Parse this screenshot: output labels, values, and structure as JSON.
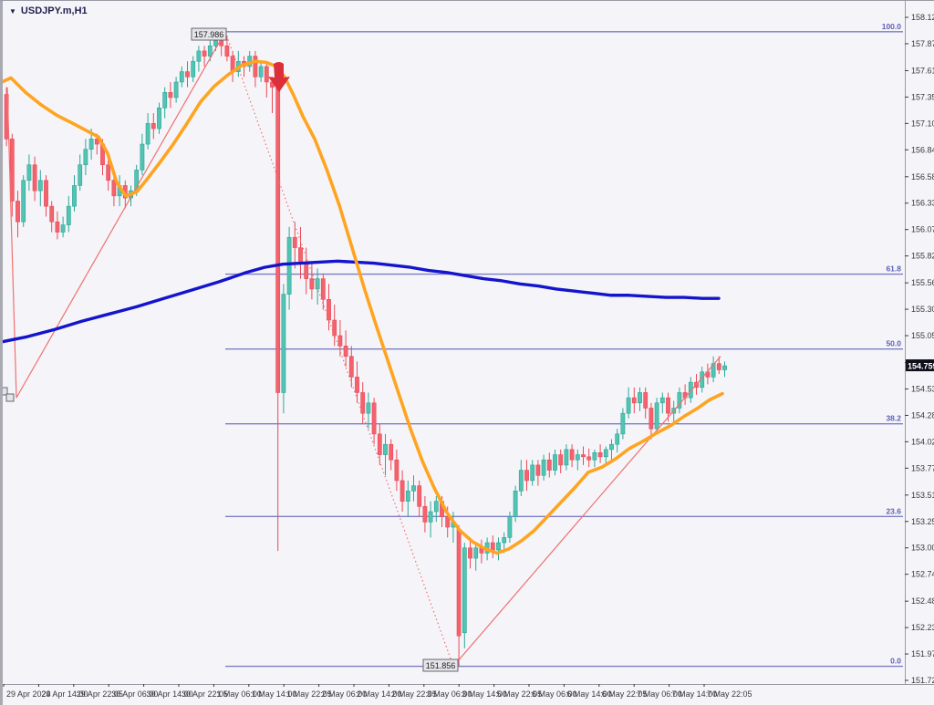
{
  "window": {
    "title": "USDJPY.m,H1"
  },
  "colors": {
    "bg": "#f5f5f9",
    "plot_bg": "#f5f5f9",
    "frame": "#9a9aa4",
    "left_strip": "#a9a9b1",
    "axis_text": "#3a3a3a",
    "fib_line": "#7d7dc4",
    "fib_text": "#5e5eb8",
    "bull_body": "#53c3b3",
    "bull_border": "#2aa795",
    "bear_body": "#f2636e",
    "bear_border": "#ea4956",
    "ma_fast": "#ffa420",
    "ma_slow": "#1414cd",
    "trend": "#f07070",
    "arrow": "#dc2f3a",
    "marker_bg": "#10101c",
    "marker_text": "#ffffff",
    "label_box_bg": "#e4e4ea",
    "label_box_border": "#666670",
    "label_box_text": "#222222"
  },
  "price_axis": {
    "ticks": [
      "158.125",
      "157.870",
      "157.610",
      "157.355",
      "157.100",
      "156.845",
      "156.585",
      "156.330",
      "156.075",
      "155.820",
      "155.560",
      "155.305",
      "155.050",
      "154.790",
      "154.535",
      "154.280",
      "154.025",
      "153.770",
      "153.510",
      "153.255",
      "153.000",
      "152.745",
      "152.485",
      "152.230",
      "151.975",
      "151.720"
    ]
  },
  "time_axis": {
    "labels": [
      "29 Apr 2024",
      "29 Apr 14:00",
      "29 Apr 22:05",
      "30 Apr 06:00",
      "30 Apr 14:00",
      "30 Apr 22:05",
      "1 May 06:00",
      "1 May 14:00",
      "1 May 22:05",
      "2 May 06:00",
      "2 May 14:00",
      "2 May 22:05",
      "3 May 06:00",
      "3 May 14:00",
      "5 May 22:05",
      "6 May 06:00",
      "6 May 14:00",
      "6 May 22:05",
      "7 May 06:00",
      "7 May 14:00",
      "7 May 22:05"
    ]
  },
  "price_marker": {
    "value": "154.759"
  },
  "annotations": {
    "high_label": "157.986",
    "low_label": "151.856"
  },
  "chart_data": {
    "type": "candlestick",
    "symbol": "USDJPY.m",
    "timeframe": "H1",
    "ylim": [
      151.72,
      158.125
    ],
    "legend_position": "none",
    "grid": false,
    "fib": {
      "high": 157.986,
      "low": 151.856,
      "levels": [
        {
          "label": "100.0",
          "price": 157.986
        },
        {
          "label": "61.8",
          "price": 155.644
        },
        {
          "label": "50.0",
          "price": 154.921
        },
        {
          "label": "38.2",
          "price": 154.198
        },
        {
          "label": "23.6",
          "price": 153.303
        },
        {
          "label": "0.0",
          "price": 151.856
        }
      ]
    },
    "candles": [
      [
        157.38,
        157.45,
        156.88,
        156.95
      ],
      [
        156.95,
        157.0,
        156.2,
        156.35
      ],
      [
        156.35,
        156.45,
        156.0,
        156.15
      ],
      [
        156.15,
        156.6,
        156.1,
        156.55
      ],
      [
        156.55,
        156.8,
        156.45,
        156.7
      ],
      [
        156.7,
        156.78,
        156.35,
        156.45
      ],
      [
        156.45,
        156.65,
        156.3,
        156.55
      ],
      [
        156.55,
        156.6,
        156.2,
        156.3
      ],
      [
        156.3,
        156.35,
        156.05,
        156.15
      ],
      [
        156.15,
        156.25,
        155.98,
        156.05
      ],
      [
        156.05,
        156.2,
        156.0,
        156.12
      ],
      [
        156.12,
        156.4,
        156.05,
        156.3
      ],
      [
        156.3,
        156.6,
        156.25,
        156.5
      ],
      [
        156.5,
        156.8,
        156.45,
        156.7
      ],
      [
        156.7,
        156.95,
        156.6,
        156.85
      ],
      [
        156.85,
        157.05,
        156.75,
        156.95
      ],
      [
        156.95,
        157.0,
        156.8,
        156.9
      ],
      [
        156.9,
        156.95,
        156.6,
        156.7
      ],
      [
        156.7,
        156.8,
        156.45,
        156.55
      ],
      [
        156.55,
        156.6,
        156.3,
        156.4
      ],
      [
        156.4,
        156.6,
        156.3,
        156.5
      ],
      [
        156.5,
        156.55,
        156.28,
        156.38
      ],
      [
        156.38,
        156.5,
        156.3,
        156.45
      ],
      [
        156.45,
        156.7,
        156.4,
        156.65
      ],
      [
        156.65,
        157.0,
        156.6,
        156.9
      ],
      [
        156.9,
        157.2,
        156.85,
        157.1
      ],
      [
        157.1,
        157.2,
        156.95,
        157.05
      ],
      [
        157.05,
        157.3,
        157.0,
        157.25
      ],
      [
        157.25,
        157.45,
        157.15,
        157.4
      ],
      [
        157.4,
        157.5,
        157.25,
        157.35
      ],
      [
        157.35,
        157.55,
        157.3,
        157.5
      ],
      [
        157.5,
        157.65,
        157.45,
        157.6
      ],
      [
        157.6,
        157.7,
        157.45,
        157.55
      ],
      [
        157.55,
        157.75,
        157.5,
        157.7
      ],
      [
        157.7,
        157.85,
        157.6,
        157.8
      ],
      [
        157.8,
        157.85,
        157.65,
        157.75
      ],
      [
        157.75,
        157.9,
        157.7,
        157.85
      ],
      [
        157.85,
        157.95,
        157.8,
        157.9
      ],
      [
        157.9,
        157.986,
        157.75,
        157.85
      ],
      [
        157.85,
        157.95,
        157.7,
        157.75
      ],
      [
        157.75,
        157.8,
        157.5,
        157.6
      ],
      [
        157.6,
        157.8,
        157.55,
        157.7
      ],
      [
        157.7,
        157.75,
        157.55,
        157.65
      ],
      [
        157.65,
        157.8,
        157.6,
        157.75
      ],
      [
        157.75,
        157.8,
        157.45,
        157.55
      ],
      [
        157.55,
        157.7,
        157.5,
        157.65
      ],
      [
        157.65,
        157.7,
        157.35,
        157.5
      ],
      [
        157.5,
        157.55,
        157.2,
        157.45
      ],
      [
        157.45,
        157.52,
        152.97,
        154.5
      ],
      [
        154.5,
        155.55,
        154.3,
        155.45
      ],
      [
        155.45,
        156.1,
        155.3,
        156.0
      ],
      [
        156.0,
        156.15,
        155.7,
        155.9
      ],
      [
        155.9,
        156.1,
        155.6,
        155.75
      ],
      [
        155.75,
        155.9,
        155.45,
        155.6
      ],
      [
        155.6,
        155.75,
        155.4,
        155.5
      ],
      [
        155.5,
        155.7,
        155.35,
        155.6
      ],
      [
        155.6,
        155.65,
        155.3,
        155.4
      ],
      [
        155.4,
        155.55,
        155.1,
        155.2
      ],
      [
        155.2,
        155.35,
        154.95,
        155.05
      ],
      [
        155.05,
        155.2,
        154.85,
        154.95
      ],
      [
        154.95,
        155.1,
        154.75,
        154.85
      ],
      [
        154.85,
        154.95,
        154.55,
        154.65
      ],
      [
        154.65,
        154.8,
        154.4,
        154.5
      ],
      [
        154.5,
        154.6,
        154.2,
        154.3
      ],
      [
        154.3,
        154.5,
        154.15,
        154.4
      ],
      [
        154.4,
        154.45,
        154.0,
        154.1
      ],
      [
        154.1,
        154.2,
        153.8,
        153.9
      ],
      [
        153.9,
        154.1,
        153.7,
        154.0
      ],
      [
        154.0,
        154.05,
        153.75,
        153.85
      ],
      [
        153.85,
        153.95,
        153.55,
        153.65
      ],
      [
        153.65,
        153.75,
        153.35,
        153.45
      ],
      [
        153.45,
        153.65,
        153.3,
        153.55
      ],
      [
        153.55,
        153.7,
        153.45,
        153.6
      ],
      [
        153.6,
        153.65,
        153.3,
        153.4
      ],
      [
        153.4,
        153.5,
        153.15,
        153.25
      ],
      [
        153.25,
        153.45,
        153.1,
        153.35
      ],
      [
        153.35,
        153.5,
        153.25,
        153.45
      ],
      [
        153.45,
        153.5,
        153.2,
        153.3
      ],
      [
        153.3,
        153.4,
        153.1,
        153.2
      ],
      [
        153.2,
        153.35,
        153.05,
        153.25
      ],
      [
        153.18,
        153.22,
        151.856,
        152.15
      ],
      [
        152.18,
        153.05,
        152.03,
        153.0
      ],
      [
        153.0,
        153.1,
        152.8,
        152.9
      ],
      [
        152.9,
        153.05,
        152.78,
        153.0
      ],
      [
        153.0,
        153.08,
        152.85,
        152.95
      ],
      [
        152.95,
        153.1,
        152.88,
        153.05
      ],
      [
        153.05,
        153.12,
        152.9,
        152.98
      ],
      [
        152.98,
        153.1,
        152.88,
        153.05
      ],
      [
        153.05,
        153.15,
        152.95,
        153.1
      ],
      [
        153.1,
        153.35,
        153.05,
        153.3
      ],
      [
        153.3,
        153.6,
        153.25,
        153.55
      ],
      [
        153.55,
        153.85,
        153.5,
        153.75
      ],
      [
        153.75,
        153.85,
        153.55,
        153.65
      ],
      [
        153.65,
        153.85,
        153.6,
        153.8
      ],
      [
        153.8,
        153.85,
        153.6,
        153.7
      ],
      [
        153.7,
        153.9,
        153.65,
        153.85
      ],
      [
        153.85,
        153.92,
        153.68,
        153.75
      ],
      [
        153.75,
        153.95,
        153.7,
        153.9
      ],
      [
        153.9,
        153.95,
        153.72,
        153.8
      ],
      [
        153.8,
        154.0,
        153.75,
        153.95
      ],
      [
        153.95,
        154.0,
        153.78,
        153.85
      ],
      [
        153.85,
        153.95,
        153.75,
        153.9
      ],
      [
        153.9,
        153.98,
        153.8,
        153.88
      ],
      [
        153.88,
        153.96,
        153.78,
        153.85
      ],
      [
        153.85,
        153.95,
        153.78,
        153.92
      ],
      [
        153.92,
        154.0,
        153.82,
        153.88
      ],
      [
        153.88,
        153.98,
        153.8,
        153.95
      ],
      [
        153.95,
        154.05,
        153.85,
        154.0
      ],
      [
        154.0,
        154.15,
        153.92,
        154.1
      ],
      [
        154.1,
        154.35,
        154.05,
        154.3
      ],
      [
        154.3,
        154.55,
        154.25,
        154.45
      ],
      [
        154.45,
        154.55,
        154.3,
        154.4
      ],
      [
        154.4,
        154.55,
        154.32,
        154.5
      ],
      [
        154.5,
        154.55,
        154.25,
        154.35
      ],
      [
        154.35,
        154.4,
        154.05,
        154.15
      ],
      [
        154.15,
        154.45,
        154.1,
        154.4
      ],
      [
        154.4,
        154.5,
        154.3,
        154.45
      ],
      [
        154.45,
        154.5,
        154.22,
        154.3
      ],
      [
        154.3,
        154.42,
        154.2,
        154.35
      ],
      [
        154.35,
        154.55,
        154.3,
        154.5
      ],
      [
        154.5,
        154.58,
        154.38,
        154.45
      ],
      [
        154.45,
        154.65,
        154.4,
        154.6
      ],
      [
        154.6,
        154.68,
        154.48,
        154.55
      ],
      [
        154.55,
        154.75,
        154.5,
        154.7
      ],
      [
        154.7,
        154.78,
        154.58,
        154.65
      ],
      [
        154.65,
        154.85,
        154.6,
        154.78
      ],
      [
        154.78,
        154.85,
        154.68,
        154.72
      ],
      [
        154.72,
        154.8,
        154.65,
        154.759
      ]
    ],
    "ma_fast_points": [
      [
        2,
        157.5
      ],
      [
        12,
        157.54
      ],
      [
        28,
        157.4
      ],
      [
        45,
        157.28
      ],
      [
        62,
        157.18
      ],
      [
        80,
        157.1
      ],
      [
        95,
        157.03
      ],
      [
        108,
        156.97
      ],
      [
        118,
        156.81
      ],
      [
        128,
        156.53
      ],
      [
        138,
        156.4
      ],
      [
        150,
        156.44
      ],
      [
        162,
        156.57
      ],
      [
        175,
        156.72
      ],
      [
        190,
        156.9
      ],
      [
        205,
        157.1
      ],
      [
        220,
        157.31
      ],
      [
        235,
        157.46
      ],
      [
        250,
        157.57
      ],
      [
        265,
        157.66
      ],
      [
        280,
        157.7
      ],
      [
        292,
        157.69
      ],
      [
        303,
        157.65
      ],
      [
        312,
        157.55
      ],
      [
        322,
        157.37
      ],
      [
        332,
        157.17
      ],
      [
        345,
        156.95
      ],
      [
        358,
        156.66
      ],
      [
        372,
        156.31
      ],
      [
        386,
        155.9
      ],
      [
        400,
        155.49
      ],
      [
        412,
        155.16
      ],
      [
        424,
        154.84
      ],
      [
        436,
        154.52
      ],
      [
        450,
        154.15
      ],
      [
        463,
        153.84
      ],
      [
        476,
        153.58
      ],
      [
        490,
        153.34
      ],
      [
        504,
        153.17
      ],
      [
        518,
        153.06
      ],
      [
        532,
        152.99
      ],
      [
        545,
        152.95
      ],
      [
        558,
        152.99
      ],
      [
        572,
        153.07
      ],
      [
        586,
        153.17
      ],
      [
        600,
        153.3
      ],
      [
        615,
        153.44
      ],
      [
        630,
        153.58
      ],
      [
        645,
        153.73
      ],
      [
        660,
        153.78
      ],
      [
        675,
        153.86
      ],
      [
        690,
        153.96
      ],
      [
        705,
        154.03
      ],
      [
        720,
        154.11
      ],
      [
        735,
        154.18
      ],
      [
        750,
        154.27
      ],
      [
        765,
        154.35
      ],
      [
        778,
        154.43
      ],
      [
        792,
        154.49
      ]
    ],
    "ma_slow_points": [
      [
        2,
        154.99
      ],
      [
        30,
        155.04
      ],
      [
        60,
        155.11
      ],
      [
        90,
        155.19
      ],
      [
        120,
        155.26
      ],
      [
        150,
        155.33
      ],
      [
        180,
        155.41
      ],
      [
        210,
        155.49
      ],
      [
        240,
        155.57
      ],
      [
        270,
        155.66
      ],
      [
        290,
        155.71
      ],
      [
        310,
        155.74
      ],
      [
        330,
        155.75
      ],
      [
        350,
        155.76
      ],
      [
        370,
        155.77
      ],
      [
        390,
        155.76
      ],
      [
        410,
        155.75
      ],
      [
        430,
        155.73
      ],
      [
        450,
        155.71
      ],
      [
        470,
        155.68
      ],
      [
        490,
        155.66
      ],
      [
        510,
        155.63
      ],
      [
        530,
        155.6
      ],
      [
        550,
        155.58
      ],
      [
        570,
        155.55
      ],
      [
        590,
        155.53
      ],
      [
        610,
        155.5
      ],
      [
        630,
        155.48
      ],
      [
        650,
        155.46
      ],
      [
        670,
        155.44
      ],
      [
        690,
        155.44
      ],
      [
        710,
        155.43
      ],
      [
        730,
        155.42
      ],
      [
        750,
        155.42
      ],
      [
        770,
        155.41
      ],
      [
        788,
        155.41
      ]
    ],
    "zigzag": {
      "points": [
        [
          8,
          157.45
        ],
        [
          18,
          154.45
        ],
        [
          247,
          157.986
        ],
        [
          497,
          151.856
        ],
        [
          790,
          154.85
        ]
      ],
      "dotted_segment_index": 2
    }
  }
}
